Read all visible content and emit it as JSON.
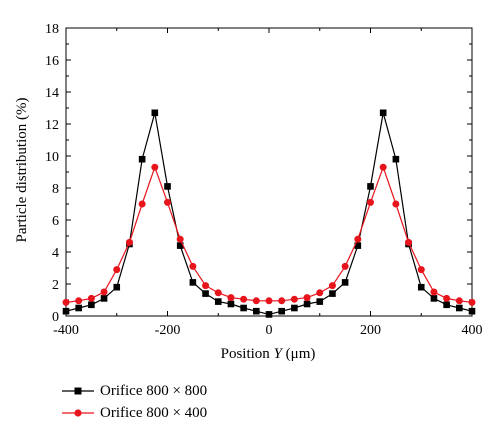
{
  "chart_data": {
    "type": "line",
    "xlabel_prefix": "Position ",
    "xlabel_var": "Y",
    "xlabel_unit": " (μm)",
    "ylabel": "Particle distribution (%)",
    "xlim": [
      -400,
      400
    ],
    "ylim": [
      0,
      18
    ],
    "xticks": [
      -400,
      -200,
      0,
      200,
      400
    ],
    "yticks": [
      0,
      2,
      4,
      6,
      8,
      10,
      12,
      14,
      16,
      18
    ],
    "grid": false,
    "legend_position": "bottom-left, below plot",
    "x": [
      -400,
      -375,
      -350,
      -325,
      -300,
      -275,
      -250,
      -225,
      -200,
      -175,
      -150,
      -125,
      -100,
      -75,
      -50,
      -25,
      0,
      25,
      50,
      75,
      100,
      125,
      150,
      175,
      200,
      225,
      250,
      275,
      300,
      325,
      350,
      375,
      400
    ],
    "series": [
      {
        "name": "Orifice 800 × 800",
        "color": "#000000",
        "marker": "square",
        "values": [
          0.3,
          0.5,
          0.7,
          1.1,
          1.8,
          4.5,
          9.8,
          12.7,
          8.1,
          4.4,
          2.1,
          1.4,
          0.9,
          0.75,
          0.5,
          0.3,
          0.1,
          0.3,
          0.5,
          0.75,
          0.9,
          1.4,
          2.1,
          4.4,
          8.1,
          12.7,
          9.8,
          4.5,
          1.8,
          1.1,
          0.7,
          0.5,
          0.3
        ]
      },
      {
        "name": "Orifice 800 × 400",
        "color": "#e8141c",
        "marker": "circle",
        "values": [
          0.85,
          0.95,
          1.1,
          1.5,
          2.9,
          4.6,
          7.0,
          9.3,
          7.1,
          4.8,
          3.1,
          1.9,
          1.45,
          1.15,
          1.05,
          0.95,
          0.95,
          0.95,
          1.05,
          1.15,
          1.45,
          1.9,
          3.1,
          4.8,
          7.1,
          9.3,
          7.0,
          4.6,
          2.9,
          1.5,
          1.1,
          0.95,
          0.85
        ]
      }
    ]
  }
}
